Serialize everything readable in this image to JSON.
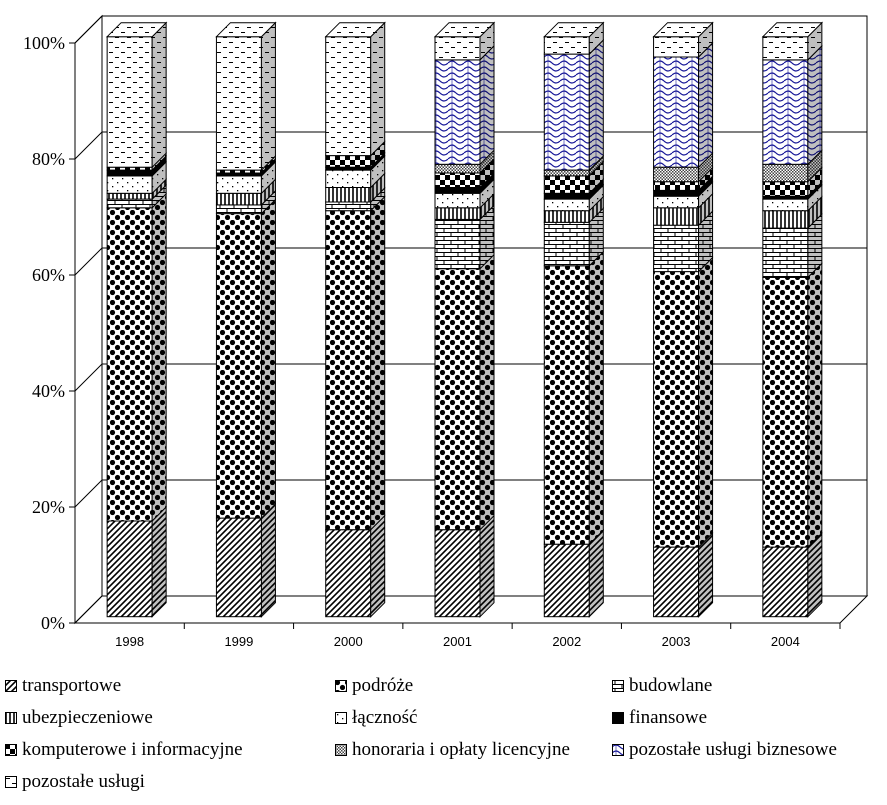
{
  "chart_data": {
    "type": "bar",
    "stacked": true,
    "three_d": true,
    "categories": [
      "1998",
      "1999",
      "2000",
      "2001",
      "2002",
      "2003",
      "2004"
    ],
    "yticks": [
      "0%",
      "20%",
      "40%",
      "60%",
      "80%",
      "100%"
    ],
    "ylim": [
      0,
      100
    ],
    "grid": true,
    "legend_position": "bottom",
    "series": [
      {
        "name": "transportowe",
        "pattern": "diag",
        "values": [
          16.5,
          17,
          15,
          15,
          12.5,
          12,
          12
        ]
      },
      {
        "name": "podróże",
        "pattern": "dots",
        "values": [
          54,
          52.5,
          55,
          45,
          48,
          47.5,
          46.5
        ]
      },
      {
        "name": "budowlane",
        "pattern": "brick",
        "values": [
          1.5,
          1.5,
          1.5,
          8.5,
          7.5,
          8,
          8.5
        ]
      },
      {
        "name": "ubezpieczeniowe",
        "pattern": "vlines",
        "values": [
          1,
          2,
          2.5,
          2,
          2,
          3,
          3
        ]
      },
      {
        "name": "łączność",
        "pattern": "sparse",
        "values": [
          3,
          3,
          3,
          2.5,
          2,
          2,
          2
        ]
      },
      {
        "name": "finansowe",
        "pattern": "solid",
        "values": [
          1,
          0.5,
          0.5,
          1,
          1,
          1,
          0.5
        ]
      },
      {
        "name": "komputerowe i informacyjne",
        "pattern": "checker",
        "values": [
          0.5,
          0.5,
          2,
          2.5,
          3,
          1.5,
          2.5
        ]
      },
      {
        "name": "honoraria i opłaty licencyjne",
        "pattern": "fine",
        "values": [
          0,
          0,
          0,
          1.5,
          1,
          2.5,
          3
        ]
      },
      {
        "name": "pozostałe usługi biznesowe",
        "pattern": "wave",
        "values": [
          0,
          0,
          0,
          18,
          20,
          19,
          18
        ]
      },
      {
        "name": "pozostałe usługi",
        "pattern": "dash",
        "values": [
          22.5,
          23,
          20.5,
          4,
          3,
          3.5,
          4
        ]
      }
    ]
  },
  "colors": {
    "ink": "#000000",
    "wave_blue": "#1a1a99",
    "floor": "#ffffff",
    "grid": "#000000"
  }
}
